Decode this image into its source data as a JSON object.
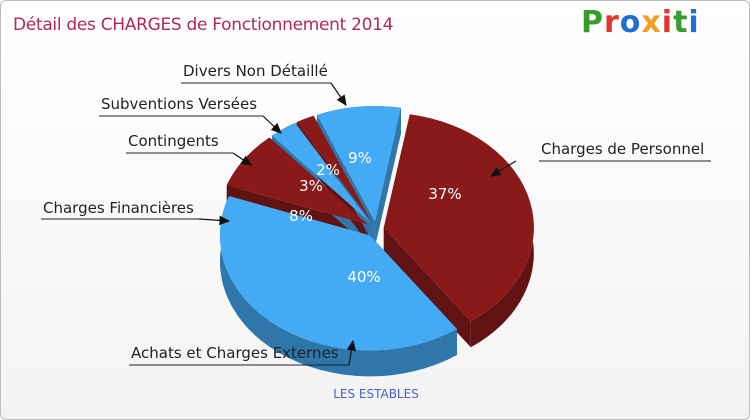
{
  "title": "Détail des CHARGES de Fonctionnement 2014",
  "logo": {
    "text": "Proxiti",
    "colors": [
      "#3a9b2e",
      "#e0372d",
      "#1f6fd1",
      "#f0a020",
      "#e0372d",
      "#3a9b2e",
      "#1f6fd1"
    ]
  },
  "footer": "LES ESTABLES",
  "colors": {
    "red": "#8a1a1a",
    "red_side": "#5e0f0f",
    "blue": "#43aaf3",
    "blue_side": "#2b8ad0",
    "title": "#b0285a"
  },
  "chart_data": {
    "type": "pie",
    "title": "Détail des CHARGES de Fonctionnement 2014",
    "series": [
      {
        "name": "Charges de Personnel",
        "value": 37,
        "label": "37%",
        "color": "#8a1a1a"
      },
      {
        "name": "Achats et Charges Externes",
        "value": 40,
        "label": "40%",
        "color": "#43aaf3"
      },
      {
        "name": "Charges Financières",
        "value": 8,
        "label": "8%",
        "color": "#8a1a1a"
      },
      {
        "name": "Contingents",
        "value": 3,
        "label": "3%",
        "color": "#43aaf3"
      },
      {
        "name": "Subventions Versées",
        "value": 2,
        "label": "2%",
        "color": "#8a1a1a"
      },
      {
        "name": "Divers Non Détaillé",
        "value": 9,
        "label": "9%",
        "color": "#43aaf3"
      }
    ]
  }
}
